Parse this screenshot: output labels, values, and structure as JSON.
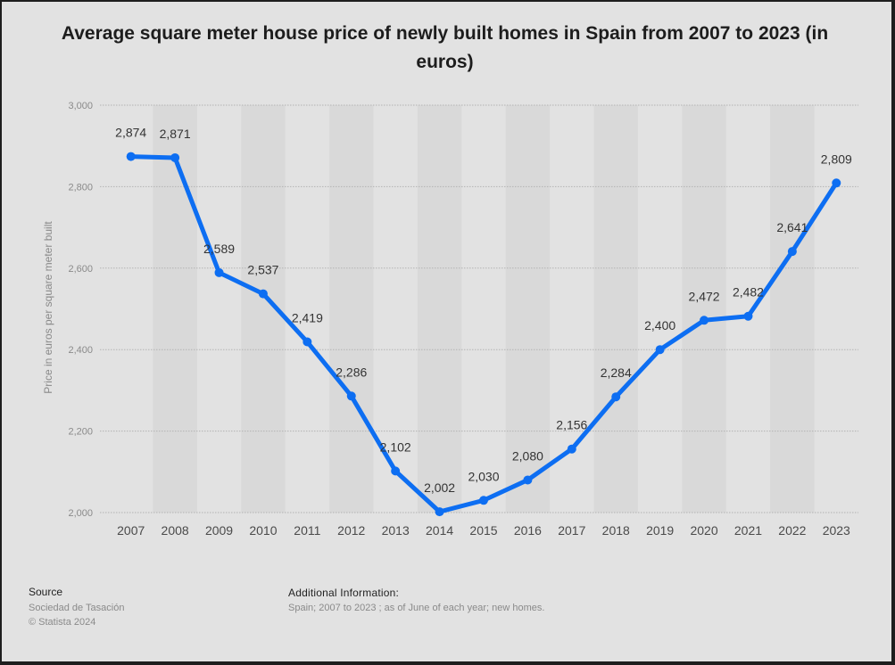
{
  "chart_data": {
    "type": "line",
    "title": "Average square meter house price of newly built homes in Spain from 2007 to 2023 (in euros)",
    "xlabel": "",
    "ylabel": "Price in euros per square meter built",
    "ylim": [
      2000,
      3000
    ],
    "yticks": [
      2000,
      2200,
      2400,
      2600,
      2800,
      3000
    ],
    "ytick_labels": [
      "2,000",
      "2,200",
      "2,400",
      "2,600",
      "2,800",
      "3,000"
    ],
    "categories": [
      "2007",
      "2008",
      "2009",
      "2010",
      "2011",
      "2012",
      "2013",
      "2014",
      "2015",
      "2016",
      "2017",
      "2018",
      "2019",
      "2020",
      "2021",
      "2022",
      "2023"
    ],
    "values": [
      2874,
      2871,
      2589,
      2537,
      2419,
      2286,
      2102,
      2002,
      2030,
      2080,
      2156,
      2284,
      2400,
      2472,
      2482,
      2641,
      2809
    ],
    "value_labels": [
      "2,874",
      "2,871",
      "2,589",
      "2,537",
      "2,419",
      "2,286",
      "2,102",
      "2,002",
      "2,030",
      "2,080",
      "2,156",
      "2,284",
      "2,400",
      "2,472",
      "2,482",
      "2,641",
      "2,809"
    ],
    "series_color": "#0d6ef2",
    "grid": true
  },
  "footer": {
    "source_heading": "Source",
    "source_lines": [
      "Sociedad de Tasación",
      "© Statista 2024"
    ],
    "info_heading": "Additional Information:",
    "info_text": "Spain; 2007 to 2023 ; as of June of each year; new homes."
  }
}
